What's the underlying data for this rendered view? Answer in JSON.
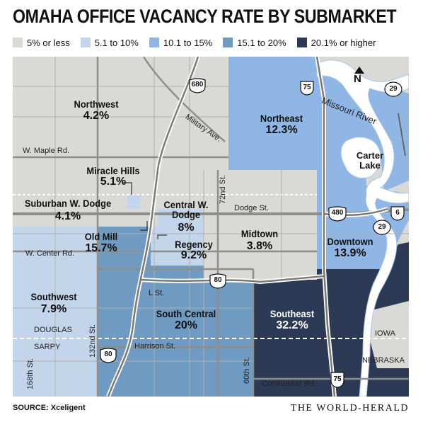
{
  "title": "OMAHA OFFICE VACANCY RATE BY SUBMARKET",
  "legend": [
    {
      "label": "5% or less",
      "color": "#d9d9d6"
    },
    {
      "label": "5.1 to 10%",
      "color": "#c3d5ea"
    },
    {
      "label": "10.1 to 15%",
      "color": "#8fb6e4"
    },
    {
      "label": "15.1 to 20%",
      "color": "#6f9ac2"
    },
    {
      "label": "20.1% or higher",
      "color": "#2d3a55"
    }
  ],
  "submarkets": [
    {
      "name": "Northwest",
      "value": "4.2%"
    },
    {
      "name": "Northeast",
      "value": "12.3%"
    },
    {
      "name": "Miracle Hills",
      "value": "5.1%"
    },
    {
      "name": "Suburban W. Dodge",
      "value": "4.1%"
    },
    {
      "name": "Central W. Dodge",
      "value": "8%"
    },
    {
      "name": "Old Mill",
      "value": "15.7%"
    },
    {
      "name": "Regency",
      "value": "9.2%"
    },
    {
      "name": "Midtown",
      "value": "3.8%"
    },
    {
      "name": "Downtown",
      "value": "13.9%"
    },
    {
      "name": "Southwest",
      "value": "7.9%"
    },
    {
      "name": "South Central",
      "value": "20%"
    },
    {
      "name": "Southeast",
      "value": "32.2%"
    }
  ],
  "places": {
    "carter_lake": "Carter Lake",
    "river": "Missouri River",
    "iowa": "IOWA",
    "nebraska": "NEBRASKA",
    "douglas": "DOUGLAS",
    "sarpy": "SARPY"
  },
  "streets": {
    "military": "Military Ave.",
    "maple": "W. Maple Rd.",
    "st72": "72nd St.",
    "dodge": "Dodge St.",
    "center": "W. Center Rd.",
    "lst": "L St.",
    "harrison": "Harrison St.",
    "st132": "132nd St.",
    "st168": "168th St.",
    "st60": "60th St.",
    "cornhusker": "Cornhusker Rd."
  },
  "highways": [
    "680",
    "75",
    "29",
    "480",
    "6",
    "29",
    "80",
    "80",
    "75"
  ],
  "north_label": "N",
  "source": "SOURCE: Xceligent",
  "credit": "THE WORLD-HERALD"
}
